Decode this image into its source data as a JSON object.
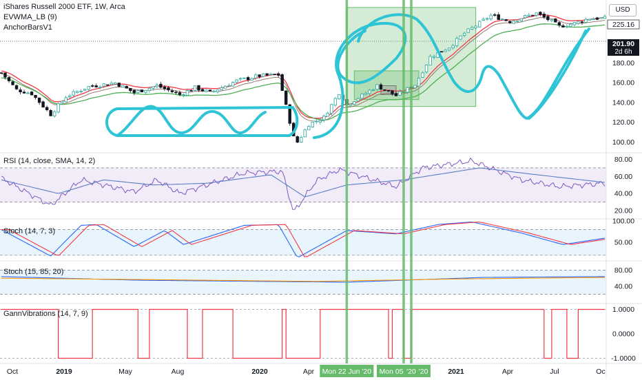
{
  "header": {
    "symbol_title": "iShares Russell 2000 ETF, 1W, Arca",
    "overlays": [
      "EVWMA_LB (9)",
      "AnchorBarsV1"
    ],
    "currency_button": "USD"
  },
  "price_panel": {
    "axis_ticks": [
      "220.00",
      "200.00",
      "180.00",
      "160.00",
      "140.00",
      "120.00",
      "100.00"
    ],
    "current_price_tag": "225.16",
    "crosshair_price_tag": "201.90",
    "countdown_tag": "2d 6h"
  },
  "indicator_panels": [
    {
      "label": "RSI (14, close, SMA, 14, 2)",
      "ticks": [
        "80.00",
        "60.00",
        "40.00",
        "20.00"
      ]
    },
    {
      "label": "Stoch (14, 7, 3)",
      "ticks": [
        "100.00",
        "50.00"
      ]
    },
    {
      "label": "Stoch (15, 85, 20)",
      "ticks": [
        "80.00",
        "40.00"
      ]
    },
    {
      "label": "GannVibrations (14, 7, 9)",
      "ticks": [
        "1.0000",
        "0.0000",
        "-1.0000"
      ]
    }
  ],
  "time_axis": {
    "ticks": [
      "Oct",
      "2019",
      "May",
      "Aug",
      "2020",
      "Apr",
      "2021",
      "Apr",
      "Jul",
      "Oc"
    ],
    "date_tags": [
      "Mon 22 Jun '20",
      "Mon 05 Oct '20",
      "'20"
    ]
  },
  "colors": {
    "up": "#26a69a",
    "down": "#131722",
    "ema_red": "#f23645",
    "ema_green": "#4caf50",
    "rsi": "#5b7ec2",
    "stoch_k": "#2962ff",
    "stoch_d": "#f23645",
    "gann": "#f23645",
    "drawing": "#2ec4d6",
    "vline": "#66bb6a"
  },
  "chart_data": [
    {
      "type": "candlestick",
      "title": "iShares Russell 2000 ETF, 1W, Arca",
      "ylim": [
        92,
        238
      ],
      "x_range": [
        "2018-09-24",
        "2021-10-11"
      ],
      "anchor_points": [
        [
          "2018-09-24",
          170
        ],
        [
          "2018-10-22",
          153
        ],
        [
          "2018-11-19",
          149
        ],
        [
          "2018-12-24",
          128
        ],
        [
          "2019-01-21",
          146
        ],
        [
          "2019-03-04",
          156
        ],
        [
          "2019-04-22",
          160
        ],
        [
          "2019-05-27",
          150
        ],
        [
          "2019-07-08",
          157
        ],
        [
          "2019-08-19",
          148
        ],
        [
          "2019-09-16",
          155
        ],
        [
          "2019-10-14",
          150
        ],
        [
          "2019-12-02",
          162
        ],
        [
          "2020-01-13",
          167
        ],
        [
          "2020-02-17",
          168
        ],
        [
          "2020-03-16",
          105
        ],
        [
          "2020-03-23",
          100
        ],
        [
          "2020-04-13",
          118
        ],
        [
          "2020-05-11",
          125
        ],
        [
          "2020-06-08",
          150
        ],
        [
          "2020-06-22",
          138
        ],
        [
          "2020-07-20",
          147
        ],
        [
          "2020-08-17",
          157
        ],
        [
          "2020-09-21",
          147
        ],
        [
          "2020-10-26",
          158
        ],
        [
          "2020-11-23",
          186
        ],
        [
          "2020-12-28",
          196
        ],
        [
          "2021-01-25",
          210
        ],
        [
          "2021-03-15",
          228
        ],
        [
          "2021-04-19",
          222
        ],
        [
          "2021-06-07",
          230
        ],
        [
          "2021-06-28",
          224
        ],
        [
          "2021-07-19",
          217
        ],
        [
          "2021-08-16",
          220
        ],
        [
          "2021-09-13",
          225
        ],
        [
          "2021-10-11",
          225.16
        ]
      ],
      "overlays": [
        "EVWMA_LB (9)",
        "AnchorBarsV1"
      ]
    },
    {
      "type": "line",
      "title": "RSI (14, close, SMA, 14, 2)",
      "ylim": [
        12,
        86
      ],
      "bands": [
        30,
        70
      ],
      "rsi_points": [
        [
          "2018-09-24",
          58
        ],
        [
          "2018-12-24",
          26
        ],
        [
          "2019-02-18",
          56
        ],
        [
          "2019-05-27",
          42
        ],
        [
          "2019-07-08",
          56
        ],
        [
          "2019-08-19",
          40
        ],
        [
          "2019-12-16",
          64
        ],
        [
          "2020-02-24",
          66
        ],
        [
          "2020-03-16",
          18
        ],
        [
          "2020-04-27",
          55
        ],
        [
          "2020-06-08",
          68
        ],
        [
          "2020-09-21",
          48
        ],
        [
          "2020-11-09",
          70
        ],
        [
          "2021-02-08",
          78
        ],
        [
          "2021-05-10",
          56
        ],
        [
          "2021-07-19",
          48
        ],
        [
          "2021-10-11",
          52
        ]
      ],
      "sma_points": [
        [
          "2018-09-24",
          56
        ],
        [
          "2019-01-07",
          40
        ],
        [
          "2019-04-01",
          56
        ],
        [
          "2019-07-01",
          50
        ],
        [
          "2019-10-07",
          52
        ],
        [
          "2020-02-03",
          62
        ],
        [
          "2020-04-06",
          36
        ],
        [
          "2020-06-22",
          50
        ],
        [
          "2020-10-05",
          56
        ],
        [
          "2021-02-22",
          70
        ],
        [
          "2021-06-07",
          62
        ],
        [
          "2021-10-11",
          53
        ]
      ]
    },
    {
      "type": "line",
      "title": "Stoch (14, 7, 3)",
      "ylim": [
        10,
        102
      ],
      "bands": [
        20,
        80
      ],
      "k_points": [
        [
          "2018-09-24",
          80
        ],
        [
          "2018-12-24",
          18
        ],
        [
          "2019-02-18",
          90
        ],
        [
          "2019-03-18",
          92
        ],
        [
          "2019-05-27",
          40
        ],
        [
          "2019-07-22",
          78
        ],
        [
          "2019-08-26",
          45
        ],
        [
          "2019-12-16",
          90
        ],
        [
          "2020-02-17",
          92
        ],
        [
          "2020-03-23",
          14
        ],
        [
          "2020-06-22",
          78
        ],
        [
          "2020-09-21",
          70
        ],
        [
          "2020-12-07",
          92
        ],
        [
          "2021-02-08",
          98
        ],
        [
          "2021-05-10",
          72
        ],
        [
          "2021-07-26",
          45
        ],
        [
          "2021-10-11",
          60
        ]
      ]
    },
    {
      "type": "line",
      "title": "Stoch (15, 85, 20)",
      "ylim": [
        0,
        100
      ],
      "bands": [
        20,
        80
      ],
      "k_points": [
        [
          "2018-09-24",
          64
        ],
        [
          "2019-06-03",
          55
        ],
        [
          "2020-06-22",
          50
        ],
        [
          "2021-03-01",
          62
        ],
        [
          "2021-10-11",
          64
        ]
      ],
      "d_points": [
        [
          "2018-09-24",
          60
        ],
        [
          "2019-03-04",
          58
        ],
        [
          "2020-04-27",
          52
        ],
        [
          "2021-01-04",
          58
        ],
        [
          "2021-10-11",
          62
        ]
      ]
    },
    {
      "type": "line",
      "title": "GannVibrations (14, 7, 9)",
      "ylim": [
        -1.1,
        1.1
      ],
      "segments": [
        [
          "2018-09-24",
          "2019-01-07",
          1
        ],
        [
          "2019-01-07",
          "2019-03-11",
          -1
        ],
        [
          "2019-03-11",
          "2019-06-03",
          1
        ],
        [
          "2019-06-03",
          "2019-06-24",
          -1
        ],
        [
          "2019-06-24",
          "2019-09-02",
          1
        ],
        [
          "2019-09-02",
          "2019-09-30",
          -1
        ],
        [
          "2019-09-30",
          "2019-11-25",
          1
        ],
        [
          "2019-11-25",
          "2020-02-24",
          -1
        ],
        [
          "2020-02-24",
          "2020-03-02",
          1
        ],
        [
          "2020-03-02",
          "2020-05-04",
          -1
        ],
        [
          "2020-05-04",
          "2020-09-07",
          1
        ],
        [
          "2020-09-07",
          "2020-09-14",
          -1
        ],
        [
          "2020-09-14",
          "2020-10-05",
          1
        ],
        [
          "2020-10-05",
          "2020-10-19",
          -1
        ],
        [
          "2020-10-19",
          "2021-06-21",
          1
        ],
        [
          "2021-06-21",
          "2021-07-05",
          -1
        ],
        [
          "2021-07-05",
          "2021-08-02",
          1
        ],
        [
          "2021-08-02",
          "2021-08-23",
          -1
        ],
        [
          "2021-08-23",
          "2021-10-11",
          1
        ]
      ]
    }
  ],
  "annotations": {
    "vertical_lines": [
      "2020-06-22",
      "2020-10-05",
      "2020-10-19"
    ],
    "boxes": [
      {
        "from": "2020-06-22",
        "to": "2021-02-15",
        "y_top": 236,
        "y_bottom": 136
      },
      {
        "from": "2020-07-06",
        "to": "2020-11-02",
        "y_top": 172,
        "y_bottom": 143
      },
      {
        "from": "2020-08-24",
        "to": "2020-09-21",
        "y_top": 157,
        "y_bottom": 148
      }
    ]
  }
}
